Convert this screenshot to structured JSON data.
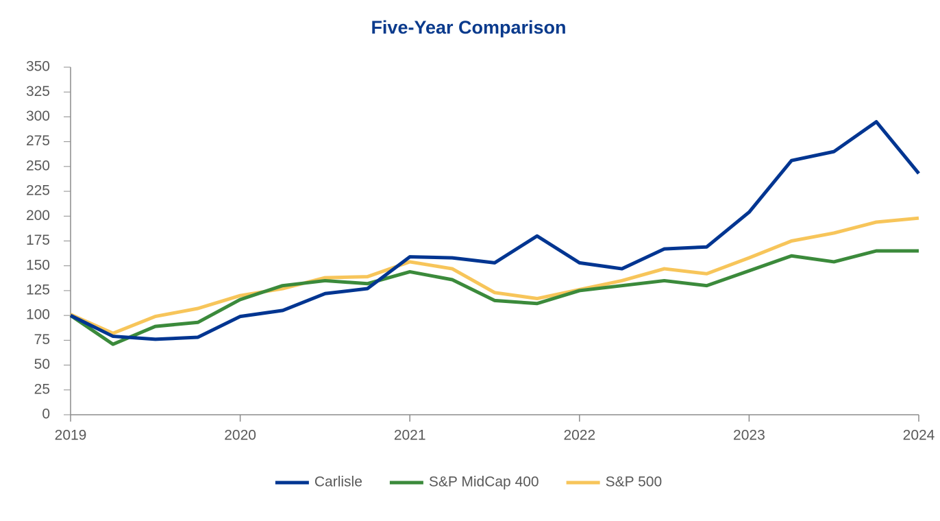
{
  "chart_data": {
    "type": "line",
    "title": "Five-Year Comparison",
    "categories": [
      "2019",
      null,
      null,
      null,
      "2020",
      null,
      null,
      null,
      "2021",
      null,
      null,
      null,
      "2022",
      null,
      null,
      null,
      "2023",
      null,
      null,
      null,
      "2024"
    ],
    "series": [
      {
        "name": "Carlisle",
        "color": "#003591",
        "values": [
          100,
          79,
          76,
          78,
          99,
          105,
          122,
          127,
          159,
          158,
          153,
          180,
          153,
          147,
          167,
          169,
          204,
          256,
          265,
          295,
          243
        ]
      },
      {
        "name": "S&P MidCap 400",
        "color": "#3b8a3b",
        "values": [
          100,
          71,
          89,
          93,
          116,
          130,
          135,
          132,
          144,
          136,
          115,
          112,
          125,
          130,
          135,
          130,
          145,
          160,
          154,
          165,
          165
        ]
      },
      {
        "name": "S&P 500",
        "color": "#f7c55a",
        "values": [
          101,
          82,
          99,
          107,
          120,
          127,
          138,
          139,
          154,
          147,
          123,
          117,
          126,
          135,
          147,
          142,
          158,
          175,
          183,
          194,
          198
        ]
      }
    ],
    "ylim": [
      0,
      350
    ],
    "yticks": [
      0,
      25,
      50,
      75,
      100,
      125,
      150,
      175,
      200,
      225,
      250,
      275,
      300,
      325,
      350
    ],
    "legend": "bottom"
  }
}
